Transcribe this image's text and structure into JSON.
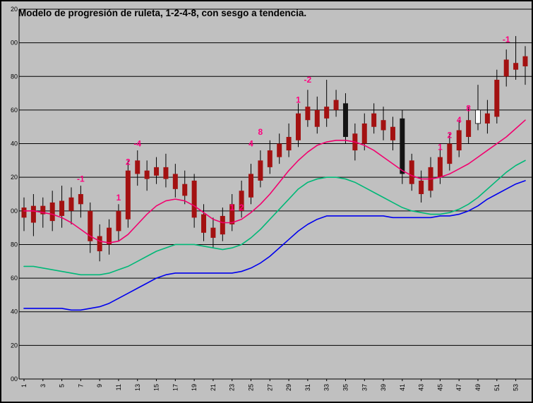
{
  "chart": {
    "title": "Modelo de progresión de ruleta, 1-2-4-8, con sesgo a tendencia."
  },
  "chart_data": {
    "type": "candlestick",
    "title": "Modelo de progresión de ruleta, 1-2-4-8, con sesgo a tendencia.",
    "xlabel": "",
    "ylabel": "",
    "ylim": [
      900,
      1120
    ],
    "y_tick_values": [
      1120,
      1100,
      1080,
      1060,
      1040,
      1020,
      1000,
      980,
      960,
      940,
      920,
      900
    ],
    "y_tick_labels": [
      "20",
      "00",
      "80",
      "60",
      "40",
      "20",
      "00",
      "80",
      "60",
      "40",
      "20",
      "00"
    ],
    "x_tick_labels": [
      "1",
      "3",
      "5",
      "7",
      "9",
      "11",
      "13",
      "15",
      "17",
      "19",
      "21",
      "23",
      "25",
      "27",
      "29",
      "31",
      "33",
      "35",
      "37",
      "39",
      "41",
      "43",
      "45",
      "47",
      "49",
      "51",
      "53"
    ],
    "grid": true,
    "legend": false,
    "candles": [
      [
        1002,
        1008,
        988,
        996
      ],
      [
        1003,
        1010,
        985,
        993
      ],
      [
        998,
        1008,
        990,
        1003
      ],
      [
        1005,
        1012,
        988,
        994
      ],
      [
        1006,
        1015,
        990,
        997
      ],
      [
        1008,
        1014,
        992,
        1000
      ],
      [
        1004,
        1015,
        996,
        1010
      ],
      [
        1000,
        1005,
        975,
        982
      ],
      [
        985,
        992,
        970,
        976
      ],
      [
        980,
        995,
        974,
        990
      ],
      [
        988,
        1004,
        982,
        1000
      ],
      [
        995,
        1030,
        990,
        1024
      ],
      [
        1030,
        1036,
        1015,
        1022
      ],
      [
        1024,
        1030,
        1012,
        1019
      ],
      [
        1021,
        1032,
        1016,
        1026
      ],
      [
        1026,
        1034,
        1014,
        1019
      ],
      [
        1022,
        1028,
        1008,
        1013
      ],
      [
        1016,
        1024,
        1004,
        1009
      ],
      [
        1018,
        1022,
        990,
        996
      ],
      [
        998,
        1004,
        982,
        987
      ],
      [
        990,
        996,
        978,
        984
      ],
      [
        986,
        1002,
        982,
        997
      ],
      [
        992,
        1010,
        988,
        1004
      ],
      [
        1000,
        1018,
        996,
        1012
      ],
      [
        1008,
        1028,
        1004,
        1022
      ],
      [
        1018,
        1036,
        1014,
        1030
      ],
      [
        1026,
        1042,
        1022,
        1036
      ],
      [
        1032,
        1046,
        1028,
        1040
      ],
      [
        1036,
        1052,
        1032,
        1044
      ],
      [
        1042,
        1064,
        1038,
        1058
      ],
      [
        1054,
        1072,
        1050,
        1062
      ],
      [
        1060,
        1068,
        1046,
        1050
      ],
      [
        1055,
        1078,
        1050,
        1062
      ],
      [
        1060,
        1072,
        1056,
        1066
      ],
      [
        1064,
        1070,
        1040,
        1044
      ],
      [
        1046,
        1052,
        1030,
        1036
      ],
      [
        1040,
        1058,
        1036,
        1052
      ],
      [
        1050,
        1064,
        1046,
        1058
      ],
      [
        1054,
        1062,
        1042,
        1048
      ],
      [
        1050,
        1056,
        1036,
        1042
      ],
      [
        1055,
        1060,
        1016,
        1022
      ],
      [
        1030,
        1034,
        1012,
        1016
      ],
      [
        1018,
        1024,
        1005,
        1010
      ],
      [
        1012,
        1032,
        1008,
        1026
      ],
      [
        1020,
        1038,
        1016,
        1032
      ],
      [
        1028,
        1046,
        1024,
        1040
      ],
      [
        1036,
        1054,
        1032,
        1048
      ],
      [
        1044,
        1062,
        1040,
        1054
      ],
      [
        1052,
        1075,
        1048,
        1060
      ],
      [
        1058,
        1066,
        1046,
        1052
      ],
      [
        1056,
        1084,
        1052,
        1078
      ],
      [
        1080,
        1096,
        1074,
        1090
      ],
      [
        1088,
        1104,
        1078,
        1084
      ],
      [
        1086,
        1098,
        1075,
        1092
      ]
    ],
    "candle_overrides": {
      "35": "black",
      "41": "black",
      "49": "white"
    },
    "series": [
      {
        "name": "upper-ma",
        "color": "#f2006e",
        "values": [
          1000,
          1000,
          999,
          998,
          996,
          993,
          989,
          985,
          982,
          981,
          982,
          986,
          992,
          998,
          1003,
          1006,
          1007,
          1006,
          1003,
          999,
          995,
          993,
          993,
          995,
          999,
          1004,
          1010,
          1017,
          1024,
          1030,
          1035,
          1039,
          1041,
          1042,
          1042,
          1041,
          1039,
          1036,
          1032,
          1028,
          1024,
          1021,
          1019,
          1019,
          1020,
          1022,
          1025,
          1028,
          1032,
          1036,
          1040,
          1044,
          1049,
          1054
        ]
      },
      {
        "name": "middle-ma",
        "color": "#00b877",
        "values": [
          967,
          967,
          966,
          965,
          964,
          963,
          962,
          962,
          962,
          963,
          965,
          967,
          970,
          973,
          976,
          978,
          980,
          980,
          980,
          979,
          978,
          977,
          978,
          980,
          984,
          989,
          995,
          1001,
          1007,
          1013,
          1017,
          1019,
          1020,
          1020,
          1019,
          1017,
          1014,
          1011,
          1008,
          1005,
          1002,
          1000,
          999,
          998,
          998,
          999,
          1001,
          1004,
          1008,
          1013,
          1018,
          1023,
          1027,
          1030
        ]
      },
      {
        "name": "lower-ma",
        "color": "#0000ee",
        "values": [
          942,
          942,
          942,
          942,
          942,
          941,
          941,
          942,
          943,
          945,
          948,
          951,
          954,
          957,
          960,
          962,
          963,
          963,
          963,
          963,
          963,
          963,
          963,
          964,
          966,
          969,
          973,
          978,
          983,
          988,
          992,
          995,
          997,
          997,
          997,
          997,
          997,
          997,
          997,
          996,
          996,
          996,
          996,
          996,
          997,
          997,
          998,
          1000,
          1003,
          1007,
          1010,
          1013,
          1016,
          1018
        ]
      }
    ],
    "annotations": [
      {
        "bar": 7,
        "value": 1019,
        "text": "-1"
      },
      {
        "bar": 11,
        "value": 1008,
        "text": "1"
      },
      {
        "bar": 12,
        "value": 1029,
        "text": "2"
      },
      {
        "bar": 13,
        "value": 1040,
        "text": "-4"
      },
      {
        "bar": 23,
        "value": 1002,
        "text": "1"
      },
      {
        "bar": 24,
        "value": 1002,
        "text": "2"
      },
      {
        "bar": 25,
        "value": 1040,
        "text": "4"
      },
      {
        "bar": 26,
        "value": 1047,
        "text": "8"
      },
      {
        "bar": 30,
        "value": 1066,
        "text": "1"
      },
      {
        "bar": 31,
        "value": 1078,
        "text": "-2"
      },
      {
        "bar": 45,
        "value": 1038,
        "text": "1"
      },
      {
        "bar": 46,
        "value": 1045,
        "text": "2"
      },
      {
        "bar": 47,
        "value": 1054,
        "text": "4"
      },
      {
        "bar": 48,
        "value": 1061,
        "text": "8"
      },
      {
        "bar": 52,
        "value": 1102,
        "text": "-1"
      }
    ],
    "colors": {
      "background": "#c0c0c0",
      "grid": "#000000",
      "candle_red": "#a31111",
      "candle_black": "#141414",
      "candle_white": "#ffffff",
      "annotation": "#ff007f"
    }
  }
}
